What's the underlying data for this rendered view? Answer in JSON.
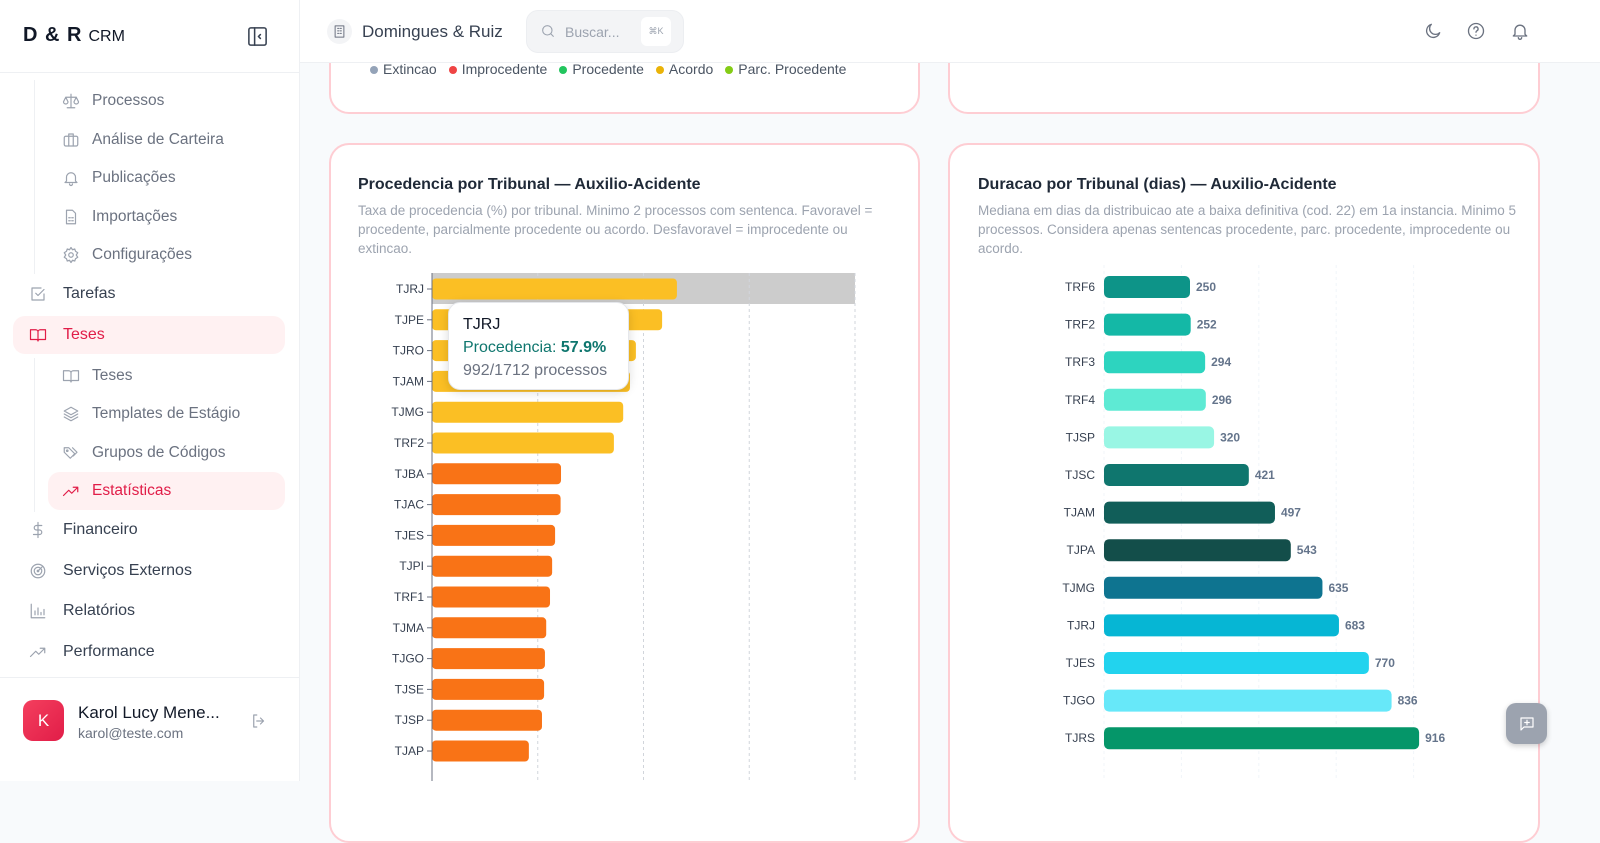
{
  "sidebar": {
    "logo": "D & R",
    "logo_sub": "CRM",
    "items": [
      {
        "label": "Processos",
        "icon": "scale-icon",
        "level": "sub"
      },
      {
        "label": "Análise de Carteira",
        "icon": "briefcase-icon",
        "level": "sub"
      },
      {
        "label": "Publicações",
        "icon": "bell-icon",
        "level": "sub"
      },
      {
        "label": "Importações",
        "icon": "file-spreadsheet-icon",
        "level": "sub"
      },
      {
        "label": "Configurações",
        "icon": "gear-icon",
        "level": "sub"
      },
      {
        "label": "Tarefas",
        "icon": "check-square-icon",
        "level": "top"
      },
      {
        "label": "Teses",
        "icon": "book-open-icon",
        "level": "top",
        "active": true
      },
      {
        "label": "Teses",
        "icon": "book-open-icon",
        "level": "sub"
      },
      {
        "label": "Templates de Estágio",
        "icon": "layers-icon",
        "level": "sub"
      },
      {
        "label": "Grupos de Códigos",
        "icon": "tags-icon",
        "level": "sub"
      },
      {
        "label": "Estatísticas",
        "icon": "trending-up-icon",
        "level": "sub",
        "active": true
      },
      {
        "label": "Financeiro",
        "icon": "dollar-icon",
        "level": "top"
      },
      {
        "label": "Serviços Externos",
        "icon": "radar-icon",
        "level": "top"
      },
      {
        "label": "Relatórios",
        "icon": "bar-chart-icon",
        "level": "top"
      },
      {
        "label": "Performance",
        "icon": "trending-up-icon",
        "level": "top"
      }
    ],
    "user": {
      "initial": "K",
      "name": "Karol Lucy Mene...",
      "email": "karol@teste.com"
    }
  },
  "header": {
    "org": "Domingues & Ruiz",
    "search_placeholder": "Buscar...",
    "shortcut": "⌘K"
  },
  "legend": [
    {
      "label": "Extincao",
      "color": "#94a3b8"
    },
    {
      "label": "Improcedente",
      "color": "#ef4444"
    },
    {
      "label": "Procedente",
      "color": "#22c55e"
    },
    {
      "label": "Acordo",
      "color": "#eab308"
    },
    {
      "label": "Parc. Procedente",
      "color": "#84cc16"
    }
  ],
  "chart_data": [
    {
      "type": "bar",
      "orientation": "horizontal",
      "title": "Procedencia por Tribunal — Auxilio-Acidente",
      "subtitle": "Taxa de procedencia (%) por tribunal. Minimo 2 processos com sentenca. Favoravel = procedente, parcialmente procedente ou acordo. Desfavoravel = improcedente ou extincao.",
      "categories": [
        "TJRJ",
        "TJPE",
        "TJRO",
        "TJAM",
        "TJMG",
        "TRF2",
        "TJBA",
        "TJAC",
        "TJES",
        "TJPI",
        "TRF1",
        "TJMA",
        "TJGO",
        "TJSE",
        "TJSP",
        "TJAP"
      ],
      "values": [
        57.9,
        54.4,
        48.2,
        46.8,
        45.2,
        43.0,
        30.5,
        30.4,
        29.1,
        28.4,
        27.9,
        27.0,
        26.7,
        26.5,
        26.0,
        22.9
      ],
      "colors": {
        "high": "#fbbf24",
        "low": "#f97316"
      },
      "xlim": [
        0,
        100
      ],
      "grid": true,
      "tooltip": {
        "title": "TJRJ",
        "label": "Procedencia: ",
        "value": "57.9%",
        "detail": "992/1712 processos"
      }
    },
    {
      "type": "bar",
      "orientation": "horizontal",
      "title": "Duracao por Tribunal (dias) — Auxilio-Acidente",
      "subtitle": "Mediana em dias da distribuicao ate a baixa definitiva (cod. 22) em 1a instancia. Minimo 5 processos. Considera apenas sentencas procedente, parc. procedente, improcedente ou acordo.",
      "categories": [
        "TRF6",
        "TRF2",
        "TRF3",
        "TRF4",
        "TJSP",
        "TJSC",
        "TJAM",
        "TJPA",
        "TJMG",
        "TJRJ",
        "TJES",
        "TJGO",
        "TJRS"
      ],
      "values": [
        250,
        252,
        294,
        296,
        320,
        421,
        497,
        543,
        635,
        683,
        770,
        836,
        916
      ],
      "colors": [
        "#0d9488",
        "#14b8a6",
        "#2dd4bf",
        "#5eead4",
        "#99f6e4",
        "#0f766e",
        "#115e59",
        "#134e4a",
        "#0e7490",
        "#06b6d4",
        "#22d3ee",
        "#67e8f9",
        "#059669"
      ],
      "xlim": [
        0,
        1000
      ],
      "grid": true
    }
  ]
}
